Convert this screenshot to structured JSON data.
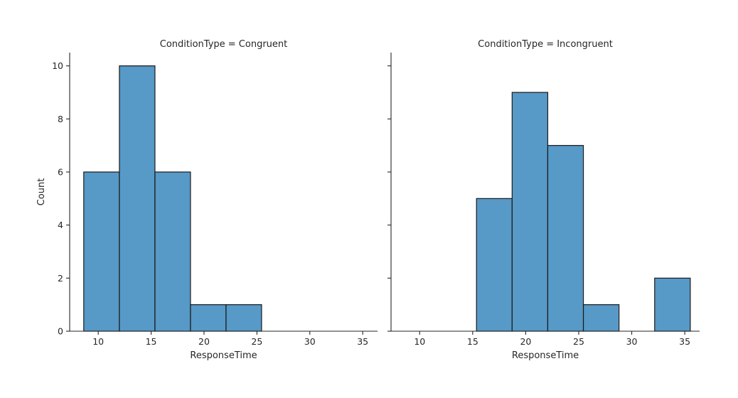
{
  "chart_data": [
    {
      "type": "bar",
      "title": "ConditionType = Congruent",
      "xlabel": "ResponseTime",
      "ylabel": "Count",
      "xlim": [
        7.3,
        36.4
      ],
      "ylim": [
        0,
        10.5
      ],
      "xticks": [
        10,
        15,
        20,
        25,
        30,
        35
      ],
      "yticks": [
        0,
        2,
        4,
        6,
        8,
        10
      ],
      "bin_edges": [
        8.63,
        12.0,
        15.36,
        18.72,
        22.08,
        25.44,
        28.8,
        32.16,
        35.52
      ],
      "values": [
        6,
        10,
        6,
        1,
        1,
        0,
        0,
        0
      ],
      "color": "#5799c7",
      "grid": false
    },
    {
      "type": "bar",
      "title": "ConditionType = Incongruent",
      "xlabel": "ResponseTime",
      "ylabel": "",
      "xlim": [
        7.3,
        36.4
      ],
      "ylim": [
        0,
        10.5
      ],
      "xticks": [
        10,
        15,
        20,
        25,
        30,
        35
      ],
      "yticks": [
        0,
        2,
        4,
        6,
        8,
        10
      ],
      "bin_edges": [
        8.63,
        12.0,
        15.36,
        18.72,
        22.08,
        25.44,
        28.8,
        32.16,
        35.52
      ],
      "values": [
        0,
        0,
        5,
        9,
        7,
        1,
        0,
        2
      ],
      "color": "#5799c7",
      "grid": false
    }
  ]
}
